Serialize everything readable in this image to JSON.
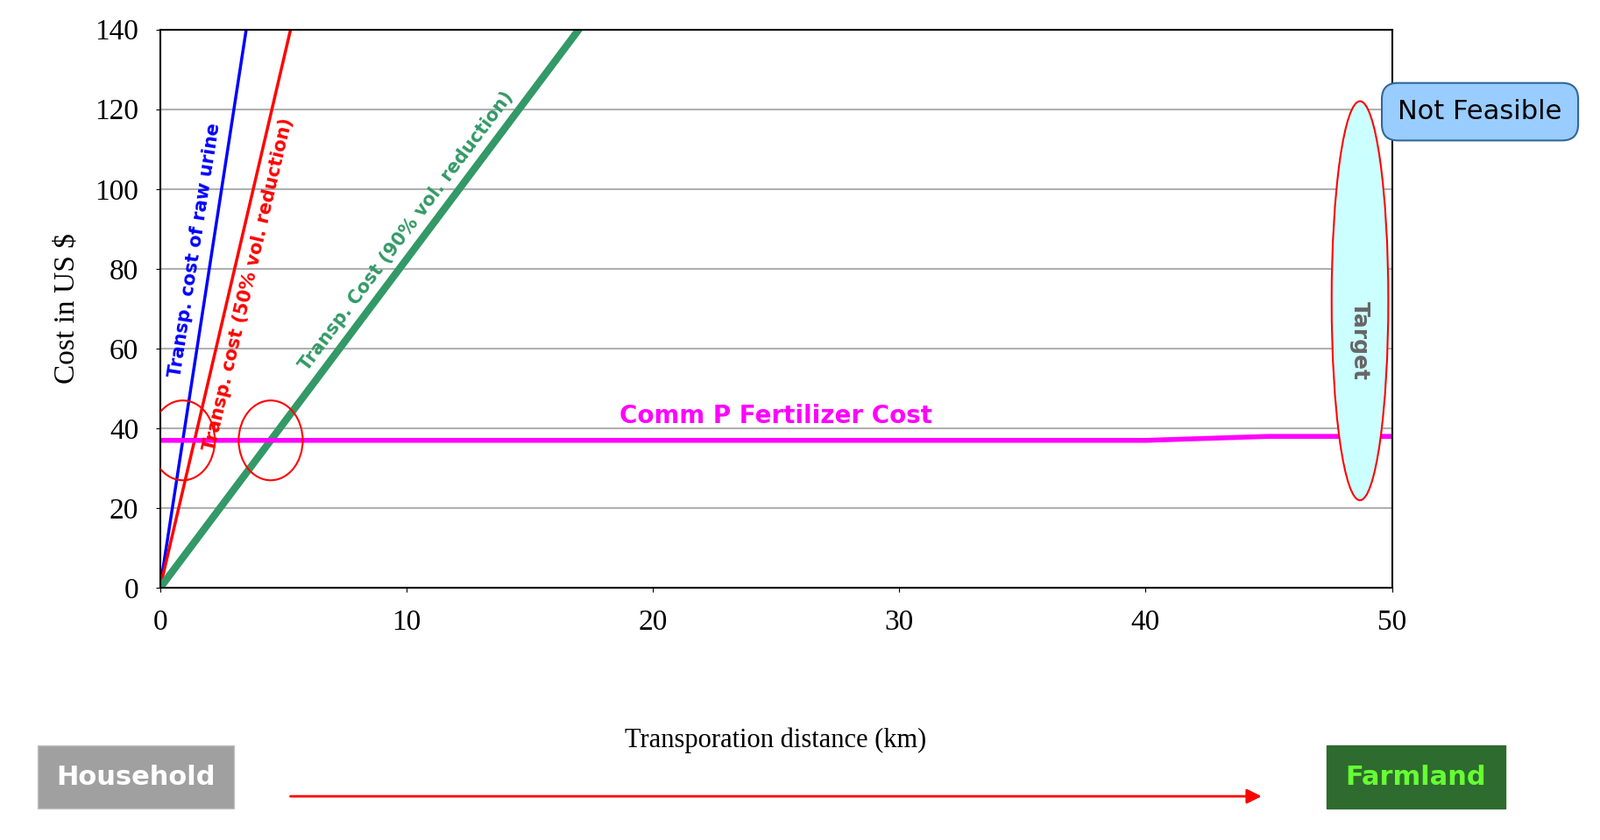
{
  "chart_data": {
    "type": "line",
    "x_label": "Transporation distance (km)",
    "y_label": "Cost in US $",
    "xlim": [
      0,
      50
    ],
    "ylim": [
      0,
      140
    ],
    "xticks": [
      0,
      10,
      20,
      30,
      40,
      50
    ],
    "yticks": [
      0,
      20,
      40,
      60,
      80,
      100,
      120,
      140
    ],
    "grid": true,
    "series": [
      {
        "name": "Transp. cost of raw urine",
        "color": "#0000ff",
        "x": [
          0,
          3.5
        ],
        "values": [
          0,
          140
        ]
      },
      {
        "name": "Transp. cost (50% vol. reduction)",
        "color": "#ff0000",
        "x": [
          0,
          5.3
        ],
        "values": [
          0,
          140
        ]
      },
      {
        "name": "Transp. Cost (90% vol. reduction)",
        "color": "#339966",
        "x": [
          0,
          17
        ],
        "values": [
          0,
          140
        ]
      },
      {
        "name": "Comm P Fertilizer Cost",
        "color": "#ff00ff",
        "x": [
          0,
          40,
          45,
          50
        ],
        "values": [
          37,
          37,
          38,
          38
        ]
      }
    ],
    "annotations": [
      "Not Feasible",
      "Target",
      "Household",
      "Farmland"
    ]
  }
}
